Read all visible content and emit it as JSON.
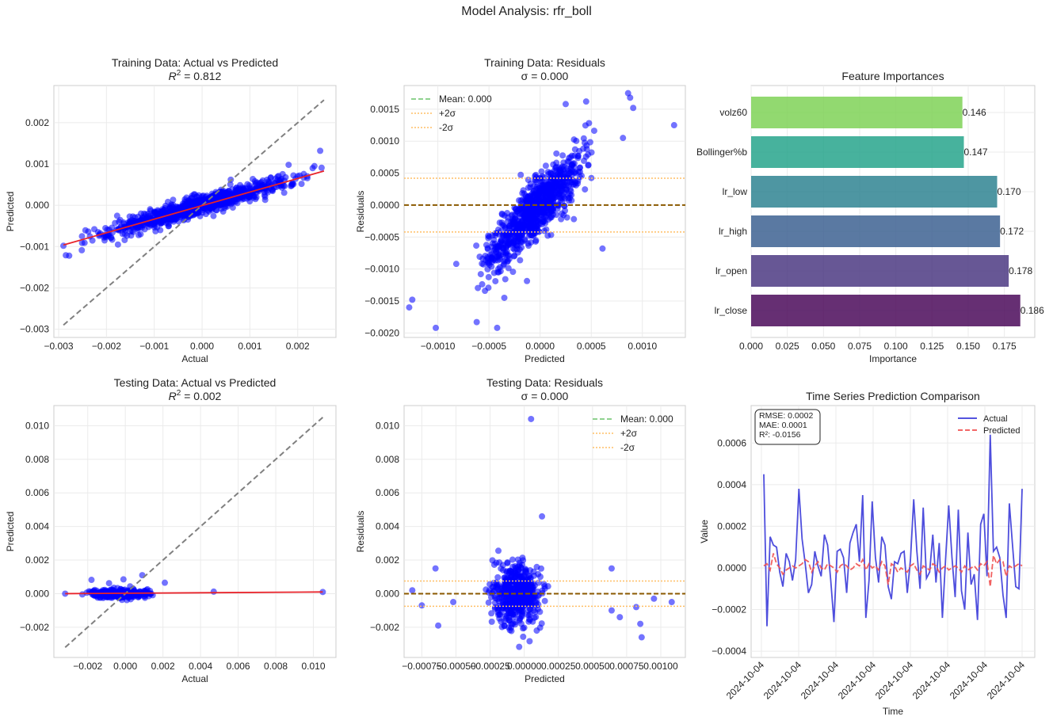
{
  "suptitle": "Model Analysis: rfr_boll",
  "colors": {
    "scatter": "#0000ff",
    "fit": "#e8232a",
    "diag": "#808080",
    "mean": "#8b5a00",
    "mean_legend": "#6cc36c",
    "sigma": "#ffbf66",
    "actual": "#3b3bd9",
    "predicted": "#f05050"
  },
  "chart_data": [
    {
      "id": "train_avp",
      "type": "scatter",
      "title": "Training Data: Actual vs Predicted",
      "subtitle_prefix": "R",
      "subtitle_sup": "2",
      "subtitle_suffix": " = 0.812",
      "xlabel": "Actual",
      "ylabel": "Predicted",
      "xlim": [
        -0.0031,
        0.0028
      ],
      "ylim": [
        -0.0032,
        0.0029
      ],
      "xticks": [
        -0.003,
        -0.002,
        -0.001,
        0.0,
        0.001,
        0.002
      ],
      "xticklabels": [
        "−0.003",
        "−0.002",
        "−0.001",
        "0.000",
        "0.001",
        "0.002"
      ],
      "yticks": [
        -0.003,
        -0.002,
        -0.001,
        0.0,
        0.001,
        0.002
      ],
      "yticklabels": [
        "−0.003",
        "−0.002",
        "−0.001",
        "0.000",
        "0.001",
        "0.002"
      ],
      "diagonal": [
        [
          -0.0029,
          -0.0029
        ],
        [
          0.00255,
          0.00255
        ]
      ],
      "fit_line": [
        [
          -0.0029,
          -0.00096
        ],
        [
          0.00255,
          0.00083
        ]
      ],
      "cloud": {
        "n": 900,
        "x_range": [
          -0.0029,
          0.00255
        ],
        "slope": 0.33,
        "intercept": 0.0,
        "spread": 0.00011,
        "dense": true
      },
      "points": [
        [
          -0.0029,
          -0.00098
        ],
        [
          -0.00278,
          -0.00122
        ],
        [
          -0.00285,
          -0.00121
        ],
        [
          -0.00215,
          -0.00071
        ],
        [
          -0.0019,
          -0.00078
        ],
        [
          -0.00176,
          -0.00095
        ],
        [
          -0.0012,
          -0.00058
        ],
        [
          0.00247,
          0.00132
        ],
        [
          0.0025,
          0.00091
        ],
        [
          0.00235,
          0.00095
        ],
        [
          0.00181,
          0.00098
        ],
        [
          0.0016,
          0.00071
        ],
        [
          0.0006,
          0.00062
        ]
      ]
    },
    {
      "id": "train_res",
      "type": "scatter",
      "title": "Training Data: Residuals",
      "subtitle": "σ = 0.000",
      "xlabel": "Predicted",
      "ylabel": "Residuals",
      "xlim": [
        -0.00133,
        0.00142
      ],
      "ylim": [
        -0.00207,
        0.00187
      ],
      "xticks": [
        -0.001,
        -0.0005,
        0.0,
        0.0005,
        0.001
      ],
      "xticklabels": [
        "−0.0010",
        "−0.0005",
        "0.0000",
        "0.0005",
        "0.0010"
      ],
      "yticks": [
        -0.002,
        -0.0015,
        -0.001,
        -0.0005,
        0.0,
        0.0005,
        0.001,
        0.0015
      ],
      "yticklabels": [
        "−0.0020",
        "−0.0015",
        "−0.0010",
        "−0.0005",
        "0.0000",
        "0.0005",
        "0.0010",
        "0.0015"
      ],
      "mean": 0.0,
      "plus2sigma": 0.00042,
      "minus2sigma": -0.00042,
      "cloud": {
        "n": 900,
        "x_range": [
          -0.00075,
          0.00065
        ],
        "slope": 1.65,
        "intercept": 0.0,
        "spread": 0.00022,
        "dense": true
      },
      "points": [
        [
          -0.00128,
          -0.0016
        ],
        [
          -0.00125,
          -0.00148
        ],
        [
          -0.00102,
          -0.00192
        ],
        [
          -0.00082,
          -0.00092
        ],
        [
          -0.00062,
          -0.00183
        ],
        [
          -0.00042,
          -0.00192
        ],
        [
          -0.00035,
          -0.00145
        ],
        [
          0.00131,
          0.00125
        ],
        [
          0.00088,
          0.00168
        ],
        [
          0.00091,
          0.00152
        ],
        [
          0.00086,
          0.00175
        ],
        [
          0.00081,
          0.00105
        ],
        [
          0.00045,
          0.00162
        ],
        [
          0.00025,
          0.00158
        ],
        [
          0.00061,
          -0.00068
        ],
        [
          -0.00058,
          -0.00108
        ],
        [
          0.00033,
          -0.00022
        ]
      ],
      "legend": [
        "Mean: 0.000",
        "+2σ",
        "-2σ"
      ]
    },
    {
      "id": "feature_imp",
      "type": "bar",
      "orientation": "horizontal",
      "title": "Feature Importances",
      "xlabel": "Importance",
      "categories": [
        "lr_close",
        "lr_open",
        "lr_high",
        "lr_low",
        "Bollinger%b",
        "volz60"
      ],
      "values": [
        0.186,
        0.178,
        0.172,
        0.17,
        0.147,
        0.146
      ],
      "value_labels": [
        "0.186",
        "0.178",
        "0.172",
        "0.170",
        "0.147",
        "0.146"
      ],
      "bar_colors": [
        "#44015480",
        "#46327e",
        "#365c8d",
        "#277f8e",
        "#1fa187",
        "#7ad151"
      ],
      "xlim": [
        0.0,
        0.196
      ],
      "xticks": [
        0.0,
        0.025,
        0.05,
        0.075,
        0.1,
        0.125,
        0.15,
        0.175
      ],
      "xticklabels": [
        "0.000",
        "0.025",
        "0.050",
        "0.075",
        "0.100",
        "0.125",
        "0.150",
        "0.175"
      ]
    },
    {
      "id": "test_avp",
      "type": "scatter",
      "title": "Testing Data: Actual vs Predicted",
      "subtitle_prefix": "R",
      "subtitle_sup": "2",
      "subtitle_suffix": " = 0.002",
      "xlabel": "Actual",
      "ylabel": "Predicted",
      "xlim": [
        -0.0038,
        0.0112
      ],
      "ylim": [
        -0.0038,
        0.0112
      ],
      "xticks": [
        -0.002,
        0.0,
        0.002,
        0.004,
        0.006,
        0.008,
        0.01
      ],
      "xticklabels": [
        "−0.002",
        "0.000",
        "0.002",
        "0.004",
        "0.006",
        "0.008",
        "0.010"
      ],
      "yticks": [
        -0.002,
        0.0,
        0.002,
        0.004,
        0.006,
        0.008,
        0.01
      ],
      "yticklabels": [
        "−0.002",
        "0.000",
        "0.002",
        "0.004",
        "0.006",
        "0.008",
        "0.010"
      ],
      "diagonal": [
        [
          -0.0032,
          -0.0032
        ],
        [
          0.0105,
          0.0105
        ]
      ],
      "fit_line": [
        [
          -0.0032,
          0.0
        ],
        [
          0.0105,
          0.0001
        ]
      ],
      "cloud": {
        "n": 350,
        "x_range": [
          -0.0026,
          0.0019
        ],
        "slope": 0.0,
        "intercept": 0.0,
        "spread": 0.00012,
        "dense": false
      },
      "points": [
        [
          -0.0032,
          0.0
        ],
        [
          0.0047,
          0.00012
        ],
        [
          0.0105,
          0.0001
        ],
        [
          -0.0001,
          0.00085
        ],
        [
          0.0009,
          0.0011
        ],
        [
          -0.0018,
          0.00082
        ],
        [
          0.0021,
          0.00065
        ]
      ]
    },
    {
      "id": "test_res",
      "type": "scatter",
      "title": "Testing Data: Residuals",
      "subtitle": "σ = 0.000",
      "xlabel": "Predicted",
      "ylabel": "Residuals",
      "xlim": [
        -0.00088,
        0.00118
      ],
      "ylim": [
        -0.0038,
        0.0112
      ],
      "xticks": [
        -0.00075,
        -0.0005,
        -0.00025,
        0.0,
        0.00025,
        0.0005,
        0.00075,
        0.001
      ],
      "xticklabels": [
        "−0.00075",
        "−0.00050",
        "−0.00025",
        "0.00000",
        "0.00025",
        "0.00050",
        "0.00075",
        "0.00100"
      ],
      "yticks": [
        -0.002,
        0.0,
        0.002,
        0.004,
        0.006,
        0.008,
        0.01
      ],
      "yticklabels": [
        "−0.002",
        "0.000",
        "0.002",
        "0.004",
        "0.006",
        "0.008",
        "0.010"
      ],
      "mean": 0.0,
      "plus2sigma": 0.00075,
      "minus2sigma": -0.00075,
      "cloud": {
        "n": 500,
        "x_range": [
          -0.00032,
          0.00022
        ],
        "slope": 0.0,
        "intercept": 0.0,
        "spread": 0.0009,
        "dense": true
      },
      "points": [
        [
          5e-05,
          0.0104
        ],
        [
          0.00013,
          0.0046
        ],
        [
          -0.00075,
          -0.0007
        ],
        [
          -0.00065,
          0.0015
        ],
        [
          -0.00063,
          -0.0019
        ],
        [
          -0.00052,
          -0.0005
        ],
        [
          0.00064,
          0.0015
        ],
        [
          0.00064,
          -0.001
        ],
        [
          0.0007,
          -0.0014
        ],
        [
          0.00082,
          -0.0008
        ],
        [
          0.00085,
          -0.0018
        ],
        [
          0.00086,
          -0.0026
        ],
        [
          0.00108,
          -0.0005
        ],
        [
          0.00095,
          -0.0003
        ],
        [
          -0.00082,
          0.0002
        ]
      ],
      "legend": [
        "Mean: 0.000",
        "+2σ",
        "-2σ"
      ]
    },
    {
      "id": "timeseries",
      "type": "line",
      "title": "Time Series Prediction Comparison",
      "xlabel": "Time",
      "ylabel": "Value",
      "ylim": [
        -0.00043,
        0.00078
      ],
      "yticks": [
        -0.0004,
        -0.0002,
        0.0,
        0.0002,
        0.0004,
        0.0006
      ],
      "yticklabels": [
        "−0.0004",
        "−0.0002",
        "0.0000",
        "0.0002",
        "0.0004",
        "0.0006"
      ],
      "xticklabels": [
        "2024-10-04",
        "2024-10-04",
        "2024-10-04",
        "2024-10-04",
        "2024-10-04",
        "2024-10-04",
        "2024-10-04",
        "2024-10-04"
      ],
      "stats": [
        "RMSE: 0.0002",
        "MAE: 0.0001",
        "R²: -0.0156"
      ],
      "series": [
        {
          "name": "Actual",
          "values": [
            0.00045,
            -0.00028,
            0.00015,
            0.00011,
            0.0001,
            -2e-05,
            -9e-05,
            7e-05,
            3e-05,
            -6e-05,
            4e-05,
            0.00038,
            0.00014,
            2e-05,
            -0.00012,
            -8e-05,
            8e-05,
            1e-05,
            -4e-05,
            0.00016,
            0.00011,
            -6e-05,
            -0.00026,
            8e-05,
            9e-05,
            5e-05,
            -0.00012,
            0.00012,
            0.00017,
            0.00021,
            3e-05,
            0.00035,
            -0.00024,
            -6e-05,
            0.00032,
            5e-05,
            -7e-05,
            0.00015,
            0.00011,
            -9e-05,
            -0.00015,
            3e-05,
            2e-05,
            7e-05,
            8e-05,
            -0.00012,
            4e-05,
            0.00033,
            8e-05,
            -0.0001,
            0.00029,
            -5e-05,
            -2e-05,
            0.00016,
            -7e-05,
            0.00012,
            -0.00024,
            4e-05,
            0.0003,
            5e-05,
            -0.00014,
            0.00028,
            -0.00011,
            -0.0002,
            0.00017,
            -8e-05,
            -3e-05,
            -0.00025,
            0.00021,
            0.00026,
            -4e-05,
            0.00064,
            8e-05,
            0.0001,
            5e-05,
            -0.00013,
            -0.00024,
            0.00031,
            0.00011,
            -9e-05,
            -0.0001,
            0.00038
          ]
        },
        {
          "name": "Predicted",
          "values": [
            1e-05,
            2e-05,
            -1e-05,
            7e-05,
            2e-05,
            0.0,
            -3e-05,
            -1e-05,
            0.0,
            1e-05,
            0.0,
            1e-05,
            2e-05,
            4e-05,
            3e-05,
            -2e-05,
            1e-05,
            3e-05,
            0.0,
            -1e-05,
            2e-05,
            1e-05,
            0.0,
            -2e-05,
            1e-05,
            2e-05,
            1e-05,
            -1e-05,
            0.0,
            2e-05,
            1e-05,
            4e-05,
            -1e-05,
            2e-05,
            0.0,
            1e-05,
            -1e-05,
            3e-05,
            1e-05,
            -8e-05,
            2e-05,
            1e-05,
            -2e-05,
            0.0,
            -1e-05,
            -2e-05,
            1e-05,
            2e-05,
            -1e-05,
            -3e-05,
            1e-05,
            0.0,
            -1e-05,
            2e-05,
            1e-05,
            -2e-05,
            0.0,
            1e-05,
            -1e-05,
            0.0,
            1e-05,
            0.0,
            -2e-05,
            1e-05,
            -1e-05,
            0.0,
            1e-05,
            -1e-05,
            2e-05,
            1e-05,
            3e-05,
            -9e-05,
            6e-05,
            2e-05,
            4e-05,
            3e-05,
            -4e-05,
            1e-05,
            0.0,
            1e-05,
            2e-05,
            1e-05
          ]
        }
      ]
    }
  ]
}
